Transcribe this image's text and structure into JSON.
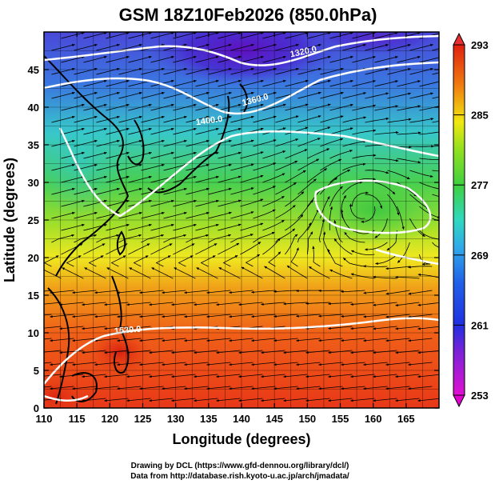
{
  "chart_data": {
    "type": "heatmap",
    "title": "GSM 18Z10Feb2026 (850.0hPa)",
    "xlabel": "Longitude (degrees)",
    "ylabel": "Latitude  (degrees)",
    "xlim": [
      110,
      170
    ],
    "ylim": [
      0,
      50
    ],
    "x_ticks": [
      "110",
      "115",
      "120",
      "125",
      "130",
      "135",
      "140",
      "145",
      "150",
      "155",
      "160",
      "165"
    ],
    "y_ticks": [
      "0",
      "5",
      "10",
      "15",
      "20",
      "25",
      "30",
      "35",
      "40",
      "45"
    ],
    "colorbar": {
      "min": 253,
      "max": 293,
      "ticks": [
        "293",
        "285",
        "277",
        "269",
        "261",
        "253"
      ],
      "colors": [
        "#e000e0",
        "#6030d0",
        "#2040e0",
        "#30a0e8",
        "#30d0c0",
        "#40d040",
        "#a0e020",
        "#f0f000",
        "#f0a000",
        "#f05000",
        "#e02000"
      ]
    },
    "contour_labels": [
      {
        "text": "1320.0",
        "lon": 155,
        "lat": 46
      },
      {
        "text": "1360.0",
        "lon": 143,
        "lat": 41.5
      },
      {
        "text": "1400.0",
        "lon": 136,
        "lat": 40
      },
      {
        "text": "1520.0",
        "lon": 122,
        "lat": 10.5
      }
    ],
    "credits": [
      "Drawing by DCL (https://www.gfd-dennou.org/library/dcl/)",
      "Data from http://database.rish.kyoto-u.ac.jp/arch/jmadata/"
    ]
  }
}
